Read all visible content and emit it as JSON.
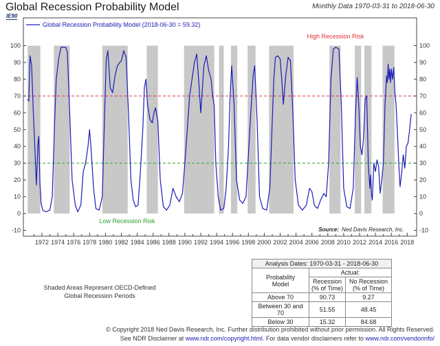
{
  "header": {
    "title": "Global Recession Probability Model",
    "code": "IE90",
    "monthly": "Monthly Data 1970-03-31 to 2018-06-30"
  },
  "chart_data": {
    "type": "line",
    "legend": "Global Recession Probability Model (2018-06-30 = 59.32)",
    "x_range": [
      1970.2,
      2018.6
    ],
    "ylim": [
      -10,
      105
    ],
    "y_ticks": [
      -10,
      0,
      10,
      20,
      30,
      40,
      50,
      60,
      70,
      80,
      90,
      100
    ],
    "x_ticks": [
      "1972",
      "1974",
      "1976",
      "1978",
      "1980",
      "1982",
      "1984",
      "1986",
      "1988",
      "1990",
      "1992",
      "1994",
      "1996",
      "1998",
      "2000",
      "2002",
      "2004",
      "2006",
      "2008",
      "2010",
      "2012",
      "2014",
      "2016",
      "2018"
    ],
    "threshold_high": {
      "value": 70,
      "label": "High Recession Risk",
      "color": "#e03030"
    },
    "threshold_low": {
      "value": 30,
      "label": "Low Recession Risk",
      "color": "#2ea02e"
    },
    "shaded_periods": [
      [
        1970.2,
        1971.8
      ],
      [
        1973.5,
        1975.5
      ],
      [
        1979.6,
        1982.8
      ],
      [
        1985.2,
        1986.6
      ],
      [
        1989.9,
        1993.7
      ],
      [
        1994.3,
        1994.9
      ],
      [
        1995.8,
        1996.6
      ],
      [
        1997.9,
        1998.9
      ],
      [
        2000.6,
        2003.7
      ],
      [
        2008.2,
        2009.6
      ],
      [
        2011.4,
        2012.2
      ],
      [
        2012.6,
        2013.5
      ],
      [
        2014.9,
        2016.4
      ]
    ],
    "series": [
      {
        "color": "#1a1ab8",
        "points": [
          [
            1970.2,
            68
          ],
          [
            1970.35,
            67
          ],
          [
            1970.5,
            94
          ],
          [
            1970.7,
            88
          ],
          [
            1970.9,
            62
          ],
          [
            1971.1,
            40
          ],
          [
            1971.3,
            17
          ],
          [
            1971.5,
            42
          ],
          [
            1971.6,
            46
          ],
          [
            1971.75,
            18
          ],
          [
            1971.9,
            6
          ],
          [
            1972.1,
            2
          ],
          [
            1972.5,
            1
          ],
          [
            1973.0,
            2
          ],
          [
            1973.3,
            10
          ],
          [
            1973.6,
            55
          ],
          [
            1973.8,
            80
          ],
          [
            1974.1,
            92
          ],
          [
            1974.4,
            99
          ],
          [
            1975.0,
            99
          ],
          [
            1975.2,
            96
          ],
          [
            1975.5,
            60
          ],
          [
            1975.8,
            20
          ],
          [
            1976.2,
            5
          ],
          [
            1976.5,
            1
          ],
          [
            1976.9,
            5
          ],
          [
            1977.2,
            25
          ],
          [
            1977.5,
            30
          ],
          [
            1977.8,
            40
          ],
          [
            1978.0,
            50
          ],
          [
            1978.2,
            38
          ],
          [
            1978.5,
            15
          ],
          [
            1978.8,
            3
          ],
          [
            1979.2,
            2
          ],
          [
            1979.6,
            10
          ],
          [
            1979.9,
            60
          ],
          [
            1980.1,
            92
          ],
          [
            1980.3,
            97
          ],
          [
            1980.6,
            75
          ],
          [
            1980.9,
            72
          ],
          [
            1981.2,
            82
          ],
          [
            1981.5,
            88
          ],
          [
            1981.8,
            90
          ],
          [
            1982.0,
            91
          ],
          [
            1982.3,
            97
          ],
          [
            1982.6,
            93
          ],
          [
            1982.9,
            60
          ],
          [
            1983.2,
            20
          ],
          [
            1983.5,
            8
          ],
          [
            1983.8,
            4
          ],
          [
            1984.1,
            5
          ],
          [
            1984.4,
            25
          ],
          [
            1984.7,
            50
          ],
          [
            1984.9,
            75
          ],
          [
            1985.1,
            80
          ],
          [
            1985.3,
            65
          ],
          [
            1985.6,
            56
          ],
          [
            1985.9,
            54
          ],
          [
            1986.1,
            60
          ],
          [
            1986.3,
            63
          ],
          [
            1986.6,
            55
          ],
          [
            1986.9,
            20
          ],
          [
            1987.3,
            4
          ],
          [
            1987.7,
            2
          ],
          [
            1988.1,
            5
          ],
          [
            1988.5,
            15
          ],
          [
            1988.9,
            10
          ],
          [
            1989.3,
            7
          ],
          [
            1989.7,
            12
          ],
          [
            1990.0,
            30
          ],
          [
            1990.3,
            50
          ],
          [
            1990.6,
            70
          ],
          [
            1990.9,
            80
          ],
          [
            1991.2,
            90
          ],
          [
            1991.5,
            95
          ],
          [
            1991.8,
            75
          ],
          [
            1992.0,
            60
          ],
          [
            1992.4,
            88
          ],
          [
            1992.7,
            94
          ],
          [
            1993.0,
            85
          ],
          [
            1993.3,
            80
          ],
          [
            1993.5,
            70
          ],
          [
            1993.7,
            64
          ],
          [
            1993.9,
            30
          ],
          [
            1994.2,
            10
          ],
          [
            1994.5,
            2
          ],
          [
            1994.9,
            3
          ],
          [
            1995.2,
            15
          ],
          [
            1995.5,
            40
          ],
          [
            1995.7,
            70
          ],
          [
            1995.9,
            88
          ],
          [
            1996.2,
            65
          ],
          [
            1996.5,
            20
          ],
          [
            1996.9,
            8
          ],
          [
            1997.3,
            6
          ],
          [
            1997.7,
            10
          ],
          [
            1998.0,
            35
          ],
          [
            1998.3,
            60
          ],
          [
            1998.6,
            82
          ],
          [
            1998.8,
            88
          ],
          [
            1999.1,
            55
          ],
          [
            1999.4,
            10
          ],
          [
            1999.8,
            3
          ],
          [
            2000.3,
            2
          ],
          [
            2000.7,
            15
          ],
          [
            2001.0,
            55
          ],
          [
            2001.2,
            80
          ],
          [
            2001.4,
            93
          ],
          [
            2001.7,
            94
          ],
          [
            2002.0,
            92
          ],
          [
            2002.2,
            80
          ],
          [
            2002.4,
            65
          ],
          [
            2002.7,
            82
          ],
          [
            2003.0,
            93
          ],
          [
            2003.3,
            91
          ],
          [
            2003.6,
            60
          ],
          [
            2003.9,
            20
          ],
          [
            2004.3,
            5
          ],
          [
            2004.8,
            2
          ],
          [
            2005.3,
            5
          ],
          [
            2005.7,
            15
          ],
          [
            2006.0,
            13
          ],
          [
            2006.3,
            5
          ],
          [
            2006.7,
            3
          ],
          [
            2007.1,
            8
          ],
          [
            2007.5,
            12
          ],
          [
            2007.8,
            10
          ],
          [
            2008.1,
            30
          ],
          [
            2008.4,
            80
          ],
          [
            2008.7,
            98
          ],
          [
            2009.0,
            99
          ],
          [
            2009.4,
            98
          ],
          [
            2009.7,
            65
          ],
          [
            2010.0,
            15
          ],
          [
            2010.4,
            4
          ],
          [
            2010.8,
            3
          ],
          [
            2011.2,
            15
          ],
          [
            2011.5,
            60
          ],
          [
            2011.7,
            81
          ],
          [
            2011.9,
            65
          ],
          [
            2012.1,
            40
          ],
          [
            2012.3,
            35
          ],
          [
            2012.5,
            45
          ],
          [
            2012.7,
            68
          ],
          [
            2012.9,
            70
          ],
          [
            2013.1,
            30
          ],
          [
            2013.3,
            15
          ],
          [
            2013.4,
            23
          ],
          [
            2013.5,
            12
          ],
          [
            2013.6,
            8
          ],
          [
            2013.8,
            30
          ],
          [
            2014.0,
            25
          ],
          [
            2014.2,
            32
          ],
          [
            2014.4,
            28
          ],
          [
            2014.6,
            12
          ],
          [
            2014.8,
            20
          ],
          [
            2015.0,
            30
          ],
          [
            2015.2,
            65
          ],
          [
            2015.4,
            82
          ],
          [
            2015.5,
            78
          ],
          [
            2015.6,
            89
          ],
          [
            2015.7,
            80
          ],
          [
            2015.8,
            86
          ],
          [
            2015.9,
            78
          ],
          [
            2016.0,
            86
          ],
          [
            2016.15,
            80
          ],
          [
            2016.3,
            87
          ],
          [
            2016.45,
            72
          ],
          [
            2016.6,
            65
          ],
          [
            2016.8,
            45
          ],
          [
            2016.95,
            28
          ],
          [
            2017.1,
            16
          ],
          [
            2017.3,
            24
          ],
          [
            2017.5,
            35
          ],
          [
            2017.7,
            27
          ],
          [
            2017.9,
            40
          ],
          [
            2018.1,
            42
          ],
          [
            2018.3,
            50
          ],
          [
            2018.5,
            59.32
          ]
        ]
      }
    ],
    "source_label": "Source:",
    "source_text": "Ned Davis Research, Inc."
  },
  "notes": {
    "shaded_line1": "Shaded Areas Represent OECD-Defined",
    "shaded_line2": "Global Recession Periods"
  },
  "analysis_table": {
    "dates": "Analysis Dates: 1970-03-31 - 2018-06-30",
    "actual_header": "Actual:",
    "model_header_1": "Probability",
    "model_header_2": "Model",
    "col1_header_1": "Recession",
    "col1_header_2": "(% of Time)",
    "col2_header_1": "No Recession",
    "col2_header_2": "(% of Time)",
    "rows": [
      {
        "label": "Above 70",
        "recession": "90.73",
        "no_recession": "9.27"
      },
      {
        "label": "Between 30 and 70",
        "recession": "51.55",
        "no_recession": "48.45"
      },
      {
        "label": "Below 30",
        "recession": "15.32",
        "no_recession": "84.68"
      }
    ]
  },
  "footer": {
    "copyright": "© Copyright 2018 Ned Davis Research, Inc. Further distribution prohibited without prior permission. All Rights Reserved.",
    "disclaimer_prefix": "See NDR Disclaimer at",
    "disclaimer_link1": "www.ndr.com/copyright.html",
    "disclaimer_mid": ". For data vendor disclaimers refer to",
    "disclaimer_link2": "www.ndr.com/vendorinfo/"
  }
}
